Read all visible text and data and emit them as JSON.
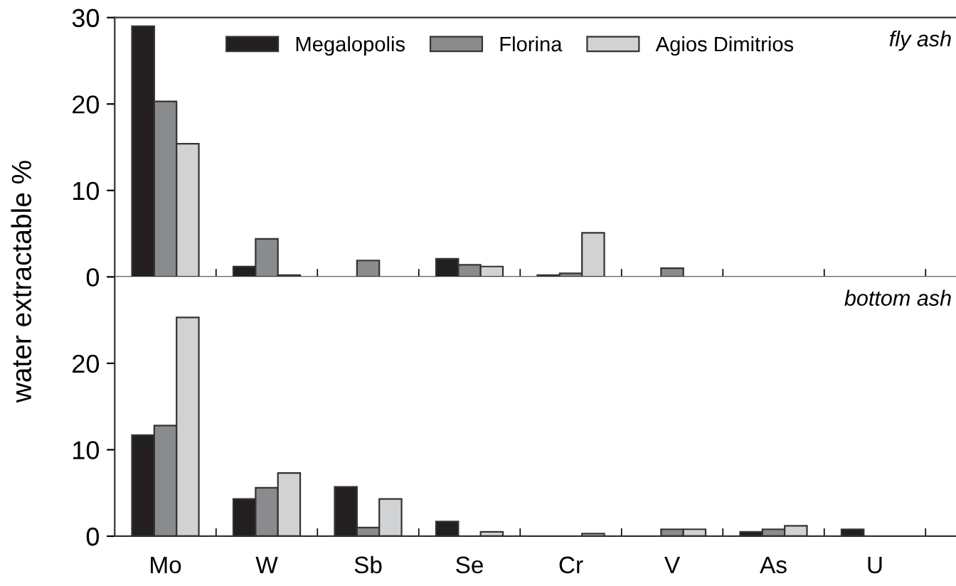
{
  "chart_data": [
    {
      "type": "bar",
      "ylabel": "water extractable %",
      "categories": [
        null,
        null,
        null,
        null,
        null,
        null,
        null,
        null
      ],
      "tick_labels": "y",
      "ylim": [
        0,
        30
      ],
      "yticks": [
        0,
        10,
        20,
        30
      ],
      "legend": "top",
      "annotations": [
        "fly ash"
      ],
      "series": [
        {
          "name": "Megalopolis",
          "color": "#231f20",
          "values": [
            29,
            1.2,
            null,
            2.1,
            0.2,
            null,
            null,
            null
          ]
        },
        {
          "name": "Florina",
          "color": "#8a8b8d",
          "values": [
            20.3,
            4.4,
            1.9,
            1.4,
            0.4,
            1.0,
            null,
            null
          ]
        },
        {
          "name": "Agios Dimitrios",
          "color": "#d1d2d4",
          "values": [
            15.4,
            0.2,
            null,
            1.2,
            5.1,
            null,
            null,
            null
          ]
        }
      ]
    },
    {
      "type": "bar",
      "categories": [
        "Mo",
        "W",
        "Sb",
        "Se",
        "Cr",
        "V",
        "As",
        "U"
      ],
      "ylim": [
        0,
        30
      ],
      "yticks": [
        0,
        10,
        20
      ],
      "annotations": [
        "bottom ash"
      ],
      "series": [
        {
          "color": "#231f20",
          "values": [
            11.7,
            4.3,
            5.7,
            1.7,
            null,
            null,
            0.5,
            0.8
          ]
        },
        {
          "color": "#8a8b8d",
          "values": [
            12.8,
            5.6,
            1.0,
            null,
            null,
            0.8,
            0.8,
            null
          ]
        },
        {
          "color": "#d1d2d4",
          "values": [
            25.3,
            7.3,
            4.3,
            0.5,
            0.3,
            0.8,
            1.2,
            null
          ]
        }
      ]
    }
  ]
}
